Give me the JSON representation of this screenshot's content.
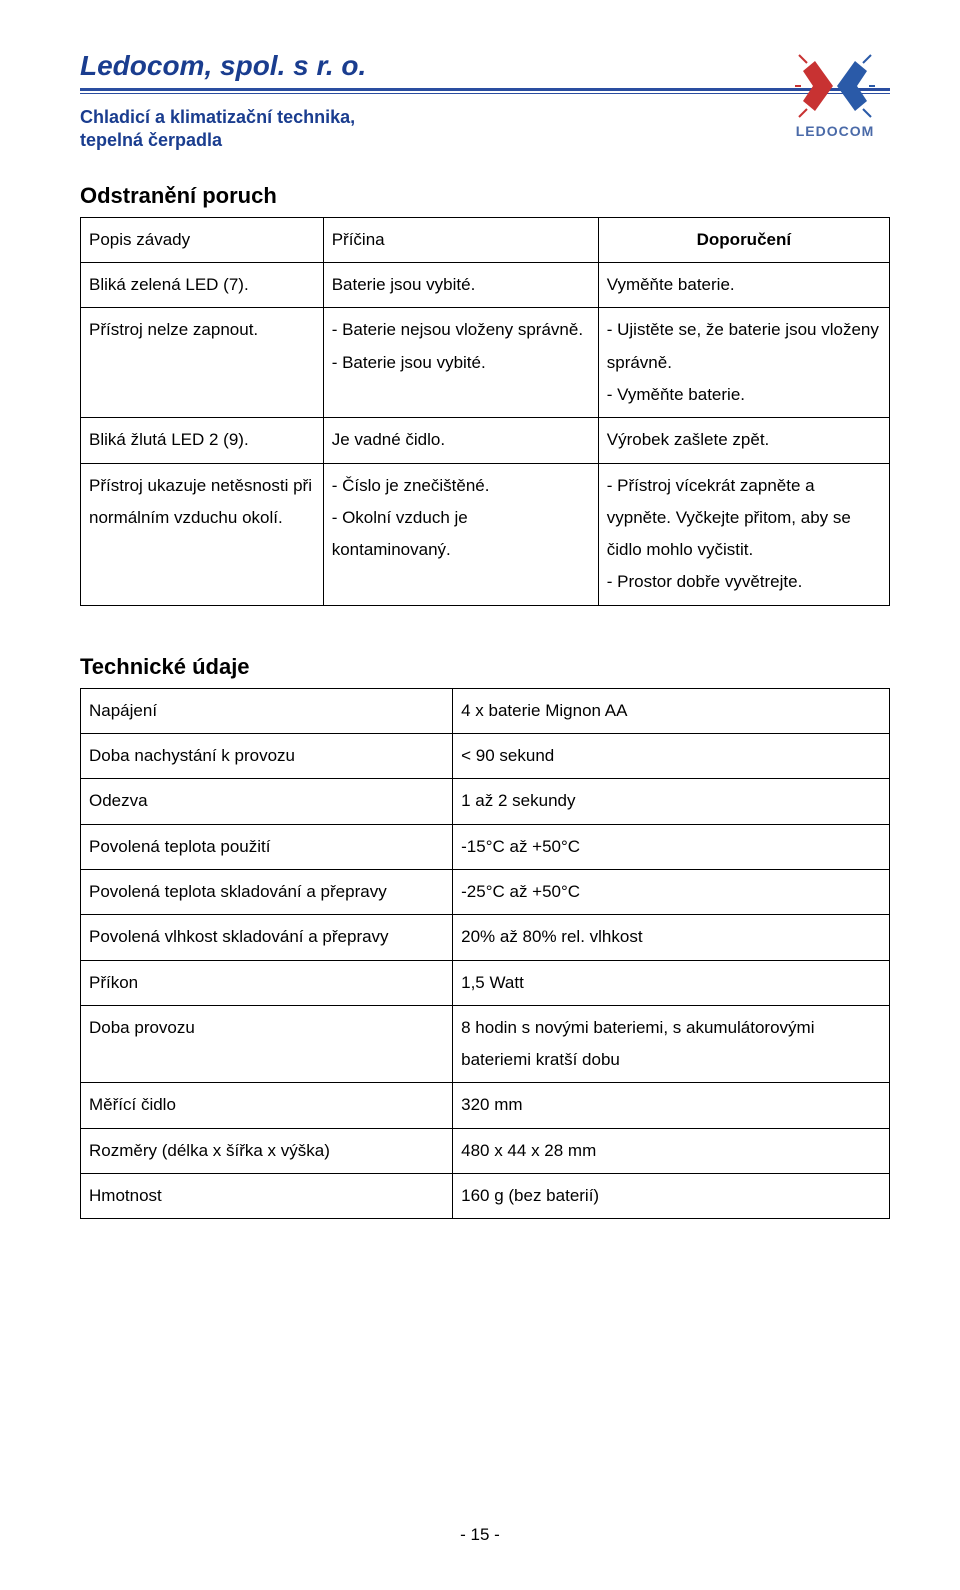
{
  "header": {
    "company": "Ledocom, spol. s r. o.",
    "subtitle_line1": "Chladicí a klimatizační technika,",
    "subtitle_line2": "tepelná čerpadla",
    "logo_text": "LEDOCOM"
  },
  "troubleshooting": {
    "title": "Odstranění poruch",
    "headers": {
      "c1": "Popis závady",
      "c2": "Příčina",
      "c3": "Doporučení"
    },
    "rows": [
      {
        "c1": "Bliká  zelená LED (7).",
        "c2": "Baterie jsou vybité.",
        "c3": "Vyměňte baterie."
      },
      {
        "c1": "Přístroj nelze zapnout.",
        "c2": "- Baterie nejsou vloženy správně.\n- Baterie jsou vybité.",
        "c3": "- Ujistěte se, že baterie  jsou vloženy správně.\n- Vyměňte baterie."
      },
      {
        "c1": "Bliká žlutá LED 2 (9).",
        "c2": "Je vadné čidlo.",
        "c3": "Výrobek zašlete zpět."
      },
      {
        "c1": "Přístroj ukazuje netěsnosti při normálním vzduchu okolí.",
        "c2": "- Číslo je znečištěné.\n- Okolní vzduch je kontaminovaný.",
        "c3": "- Přístroj vícekrát zapněte a vypněte. Vyčkejte přitom, aby se čidlo mohlo vyčistit.\n- Prostor dobře vyvětrejte."
      }
    ]
  },
  "technical": {
    "title": "Technické údaje",
    "rows": [
      {
        "label": "Napájení",
        "value": "4 x baterie Mignon AA"
      },
      {
        "label": "Doba nachystání k provozu",
        "value": "< 90 sekund"
      },
      {
        "label": "Odezva",
        "value": "1 až 2 sekundy"
      },
      {
        "label": "Povolená teplota použití",
        "value": "-15°C až +50°C"
      },
      {
        "label": "Povolená teplota skladování a přepravy",
        "value": "-25°C až +50°C"
      },
      {
        "label": "Povolená vlhkost skladování a přepravy",
        "value": "20% až 80% rel. vlhkost"
      },
      {
        "label": "Příkon",
        "value": "1,5 Watt"
      },
      {
        "label": "Doba provozu",
        "value": "8 hodin s novými bateriemi, s akumulátorovými bateriemi kratší dobu"
      },
      {
        "label": "Měřící čidlo",
        "value": "320 mm"
      },
      {
        "label": "Rozměry (délka x šířka x výška)",
        "value": "480 x 44 x 28 mm"
      },
      {
        "label": "Hmotnost",
        "value": "160 g (bez baterií)"
      }
    ]
  },
  "footer": {
    "page": "- 15 -"
  }
}
